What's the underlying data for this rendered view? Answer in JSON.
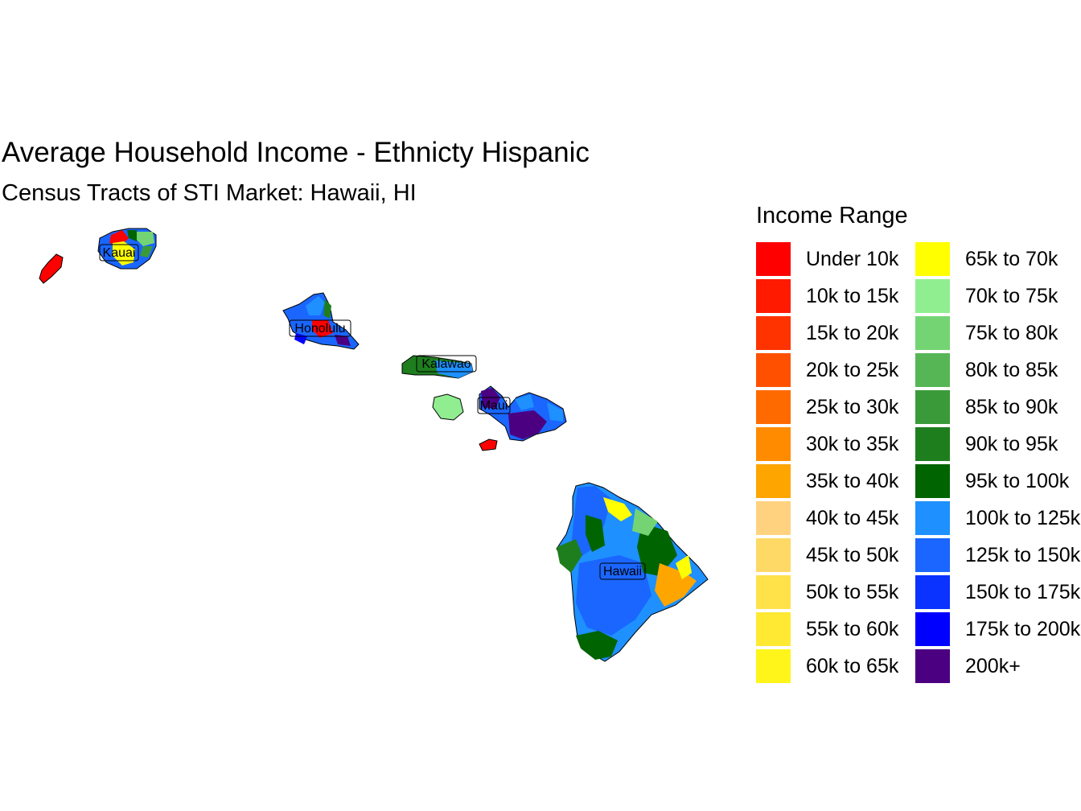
{
  "title": "Average Household Income - Ethnicty Hispanic",
  "subtitle": "Census Tracts of STI Market: Hawaii, HI",
  "legend": {
    "title": "Income Range",
    "items": [
      {
        "label": "Under 10k",
        "color": "#ff0000"
      },
      {
        "label": "10k to 15k",
        "color": "#ff1a00"
      },
      {
        "label": "15k to 20k",
        "color": "#ff3300"
      },
      {
        "label": "20k to 25k",
        "color": "#ff5000"
      },
      {
        "label": "25k to 30k",
        "color": "#ff6a00"
      },
      {
        "label": "30k to 35k",
        "color": "#ff8c00"
      },
      {
        "label": "35k to 40k",
        "color": "#ffa500"
      },
      {
        "label": "40k to 45k",
        "color": "#ffd27f"
      },
      {
        "label": "45k to 50k",
        "color": "#ffd966"
      },
      {
        "label": "50k to 55k",
        "color": "#ffe14a"
      },
      {
        "label": "55k to 60k",
        "color": "#ffe933"
      },
      {
        "label": "60k to 65k",
        "color": "#fff51a"
      },
      {
        "label": "65k to 70k",
        "color": "#ffff00"
      },
      {
        "label": "70k to 75k",
        "color": "#90ee90"
      },
      {
        "label": "75k to 80k",
        "color": "#74d474"
      },
      {
        "label": "80k to 85k",
        "color": "#56b656"
      },
      {
        "label": "85k to 90k",
        "color": "#3a9a3a"
      },
      {
        "label": "90k to 95k",
        "color": "#1e7e1e"
      },
      {
        "label": "95k to 100k",
        "color": "#006400"
      },
      {
        "label": "100k to 125k",
        "color": "#1e90ff"
      },
      {
        "label": "125k to 150k",
        "color": "#1a66ff"
      },
      {
        "label": "150k to 175k",
        "color": "#0a33ff"
      },
      {
        "label": "175k to 200k",
        "color": "#0000ff"
      },
      {
        "label": "200k+",
        "color": "#4b0082"
      }
    ]
  },
  "map": {
    "islands": [
      {
        "name": "Kauai",
        "label": "Kauai",
        "color": "#1a66ff"
      },
      {
        "name": "Niihau",
        "label": "",
        "color": "#ff0000"
      },
      {
        "name": "Oahu",
        "label": "Honolulu",
        "color": "#1a66ff"
      },
      {
        "name": "Molokai",
        "label": "Kalawao",
        "color": "#1e7e1e"
      },
      {
        "name": "Lanai",
        "label": "",
        "color": "#90ee90"
      },
      {
        "name": "Maui",
        "label": "Maui",
        "color": "#1a66ff"
      },
      {
        "name": "Kahoolawe",
        "label": "",
        "color": "#ff0000"
      },
      {
        "name": "Hawaii",
        "label": "Hawaii",
        "color": "#1e90ff"
      }
    ]
  }
}
